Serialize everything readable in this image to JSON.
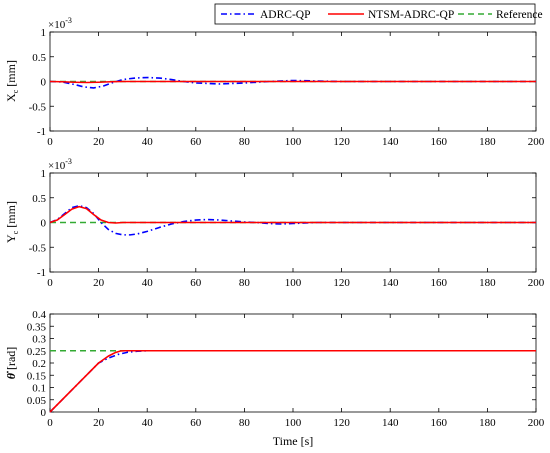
{
  "legend": {
    "placement": "top-right",
    "entries": [
      {
        "label": "ADRC-QP",
        "color": "#0000ff",
        "style": "dash-dot"
      },
      {
        "label": "NTSM-ADRC-QP",
        "color": "#ff0000",
        "style": "solid"
      },
      {
        "label": "Reference",
        "color": "#33aa33",
        "style": "dashed"
      }
    ]
  },
  "chart_data": [
    {
      "type": "line",
      "ylabel": "X_c [mm]",
      "ylabel_main": "X",
      "ylabel_sub": "c",
      "ylabel_unit": "[mm]",
      "exponent_base": "×10",
      "exponent_power": "-3",
      "xlim": [
        0,
        200
      ],
      "ylim": [
        -1,
        1
      ],
      "xticks": [
        0,
        20,
        40,
        60,
        80,
        100,
        120,
        140,
        160,
        180,
        200
      ],
      "yticks": [
        -1,
        -0.5,
        0,
        0.5,
        1
      ],
      "yticklabels": [
        "-1",
        "-0.5",
        "0",
        "0.5",
        "1"
      ],
      "grid": false,
      "series": [
        {
          "name": "ADRC-QP",
          "x": [
            0,
            5,
            10,
            14,
            18,
            22,
            26,
            30,
            35,
            40,
            45,
            50,
            55,
            60,
            65,
            70,
            75,
            80,
            90,
            100,
            110,
            120,
            200
          ],
          "y": [
            0,
            -0.01,
            -0.06,
            -0.11,
            -0.13,
            -0.09,
            -0.02,
            0.04,
            0.07,
            0.08,
            0.07,
            0.04,
            0.0,
            -0.03,
            -0.04,
            -0.05,
            -0.04,
            -0.03,
            0.0,
            0.02,
            0.01,
            0.0,
            0.0
          ]
        },
        {
          "name": "NTSM-ADRC-QP",
          "x": [
            0,
            5,
            10,
            15,
            20,
            25,
            30,
            200
          ],
          "y": [
            0,
            -0.005,
            -0.015,
            -0.02,
            -0.015,
            -0.005,
            0,
            0
          ]
        },
        {
          "name": "Reference",
          "x": [
            0,
            200
          ],
          "y": [
            0,
            0
          ]
        }
      ]
    },
    {
      "type": "line",
      "ylabel": "Y_c [mm]",
      "ylabel_main": "Y",
      "ylabel_sub": "c",
      "ylabel_unit": "[mm]",
      "exponent_base": "×10",
      "exponent_power": "-3",
      "xlim": [
        0,
        200
      ],
      "ylim": [
        -1,
        1
      ],
      "xticks": [
        0,
        20,
        40,
        60,
        80,
        100,
        120,
        140,
        160,
        180,
        200
      ],
      "yticks": [
        -1,
        -0.5,
        0,
        0.5,
        1
      ],
      "yticklabels": [
        "-1",
        "-0.5",
        "0",
        "0.5",
        "1"
      ],
      "grid": false,
      "series": [
        {
          "name": "ADRC-QP",
          "x": [
            0,
            3,
            6,
            9,
            12,
            15,
            18,
            21,
            24,
            27,
            30,
            33,
            36,
            40,
            45,
            50,
            55,
            60,
            65,
            70,
            75,
            80,
            85,
            90,
            95,
            100,
            110,
            120,
            200
          ],
          "y": [
            0,
            0.06,
            0.18,
            0.3,
            0.34,
            0.3,
            0.18,
            0.0,
            -0.14,
            -0.22,
            -0.25,
            -0.25,
            -0.23,
            -0.18,
            -0.1,
            -0.03,
            0.02,
            0.05,
            0.06,
            0.05,
            0.03,
            0.01,
            0.0,
            -0.02,
            -0.03,
            -0.02,
            0.0,
            0.0,
            0.0
          ]
        },
        {
          "name": "NTSM-ADRC-QP",
          "x": [
            0,
            3,
            6,
            9,
            12,
            15,
            18,
            21,
            24,
            27,
            30,
            200
          ],
          "y": [
            0,
            0.05,
            0.16,
            0.27,
            0.32,
            0.28,
            0.16,
            0.05,
            0.0,
            -0.01,
            0,
            0
          ]
        },
        {
          "name": "Reference",
          "x": [
            0,
            200
          ],
          "y": [
            0,
            0
          ]
        }
      ]
    },
    {
      "type": "line",
      "ylabel": "θ̇ [rad]",
      "ylabel_main": "θ̇",
      "ylabel_unit": "[rad]",
      "xlabel": "Time [s]",
      "xlim": [
        0,
        200
      ],
      "ylim": [
        0,
        0.4
      ],
      "xticks": [
        0,
        20,
        40,
        60,
        80,
        100,
        120,
        140,
        160,
        180,
        200
      ],
      "yticks": [
        0,
        0.05,
        0.1,
        0.15,
        0.2,
        0.25,
        0.3,
        0.35,
        0.4
      ],
      "yticklabels": [
        "0",
        "0.05",
        "0.1",
        "0.15",
        "0.2",
        "0.25",
        "0.3",
        "0.35",
        "0.4"
      ],
      "grid": false,
      "series": [
        {
          "name": "ADRC-QP",
          "x": [
            0,
            20,
            24,
            28,
            32,
            36,
            40,
            200
          ],
          "y": [
            0,
            0.2,
            0.22,
            0.235,
            0.244,
            0.248,
            0.25,
            0.25
          ]
        },
        {
          "name": "NTSM-ADRC-QP",
          "x": [
            0,
            20,
            24,
            27,
            29,
            31,
            200
          ],
          "y": [
            0,
            0.2,
            0.228,
            0.243,
            0.249,
            0.25,
            0.25
          ]
        },
        {
          "name": "Reference",
          "x": [
            0,
            200
          ],
          "y": [
            0.25,
            0.25
          ]
        }
      ]
    }
  ]
}
